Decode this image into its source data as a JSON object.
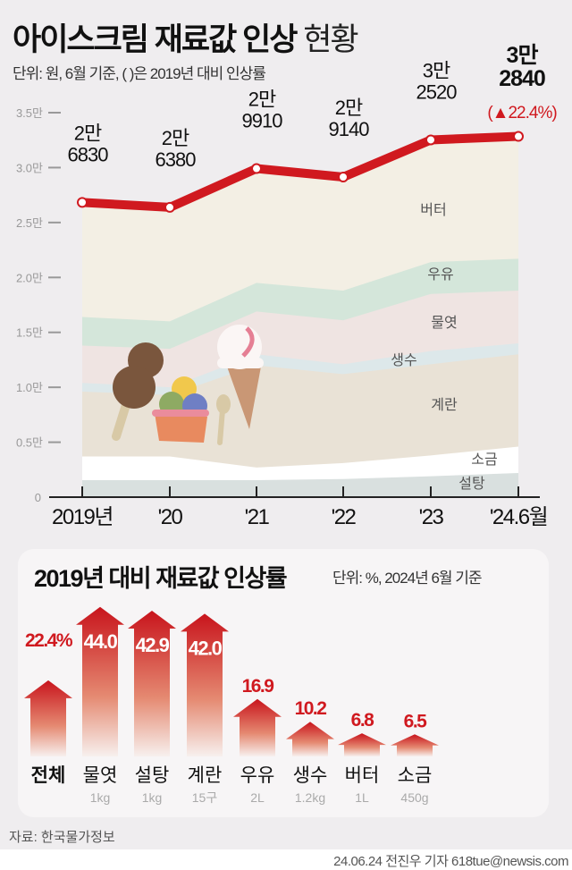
{
  "title": {
    "main": "아이스크림 재료값 인상",
    "light": "현황"
  },
  "unit_note": "단위: 원, 6월 기준, ( )은 2019년 대비 인상률",
  "chart_data": [
    {
      "type": "area",
      "x_labels": [
        "2019년",
        "'20",
        "'21",
        "'22",
        "'23",
        "'24.6월"
      ],
      "y_ticks": [
        "0",
        "0.5만",
        "1.0만",
        "1.5만",
        "2.0만",
        "2.5만",
        "3.0만",
        "3.5만"
      ],
      "ylim": [
        0,
        35000
      ],
      "total": {
        "values": [
          26830,
          26380,
          29910,
          29140,
          32520,
          32840
        ],
        "labels": [
          [
            "2만",
            "6830"
          ],
          [
            "2만",
            "6380"
          ],
          [
            "2만",
            "9910"
          ],
          [
            "2만",
            "9140"
          ],
          [
            "3만",
            "2520"
          ],
          [
            "3만",
            "2840"
          ]
        ],
        "last_change": "(▲22.4%)",
        "color": "#d0191f"
      },
      "stacked_series_cumulative": [
        {
          "name": "설탕",
          "top": [
            1550,
            1550,
            1550,
            1650,
            1900,
            2200
          ],
          "color": "#d9e0df"
        },
        {
          "name": "소금",
          "top": [
            3700,
            3700,
            2700,
            3100,
            3800,
            4600
          ],
          "color": "#ffffff"
        },
        {
          "name": "계란",
          "top": [
            9600,
            9300,
            12000,
            11200,
            12100,
            13000
          ],
          "color": "#e9e2d6"
        },
        {
          "name": "생수",
          "top": [
            10400,
            10000,
            13000,
            12100,
            13300,
            14000
          ],
          "color": "#dde8ea"
        },
        {
          "name": "물엿",
          "top": [
            13800,
            13500,
            16900,
            16100,
            18500,
            18800
          ],
          "color": "#efe4e2"
        },
        {
          "name": "우유",
          "top": [
            16400,
            16000,
            19500,
            18800,
            21400,
            21700
          ],
          "color": "#d4e6da"
        },
        {
          "name": "버터",
          "top": [
            26830,
            26380,
            29910,
            29140,
            32520,
            32840
          ],
          "color": "#f3efe4"
        }
      ]
    },
    {
      "type": "bar",
      "title": "2019년 대비 재료값 인상률",
      "unit": "단위: %, 2024년 6월 기준",
      "categories": [
        "전체",
        "물엿",
        "설탕",
        "계란",
        "우유",
        "생수",
        "버터",
        "소금"
      ],
      "sublabels": [
        "",
        "1kg",
        "1kg",
        "15구",
        "2L",
        "1.2kg",
        "1L",
        "450g"
      ],
      "values": [
        22.4,
        44.0,
        42.9,
        42.0,
        16.9,
        10.2,
        6.8,
        6.5
      ],
      "value_labels": [
        "22.4%",
        "44.0",
        "42.9",
        "42.0",
        "16.9",
        "10.2",
        "6.8",
        "6.5"
      ],
      "color": "#d0191f"
    }
  ],
  "source": "자료: 한국물가정보",
  "credit": "24.06.24 전진우 기자 618tue@newsis.com"
}
